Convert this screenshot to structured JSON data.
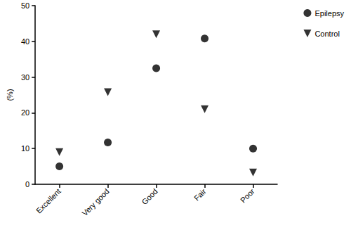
{
  "chart_data": {
    "type": "scatter",
    "y_label": "(%)",
    "categories": [
      "Excellent",
      "Very good",
      "Good",
      "Fair",
      "Poor"
    ],
    "series": [
      {
        "name": "Epilepsy",
        "color": "#000000",
        "marker": "circle",
        "values": [
          5,
          11.7,
          32.5,
          40.8,
          10
        ]
      },
      {
        "name": "Control",
        "color": "#000000",
        "marker": "triangle-down",
        "values": [
          9,
          25.8,
          42,
          21,
          3.3
        ]
      }
    ],
    "ylim": [
      0,
      50
    ],
    "yticks": [
      0,
      10,
      20,
      30,
      40,
      50
    ],
    "grid": false,
    "legend": "top-right"
  }
}
